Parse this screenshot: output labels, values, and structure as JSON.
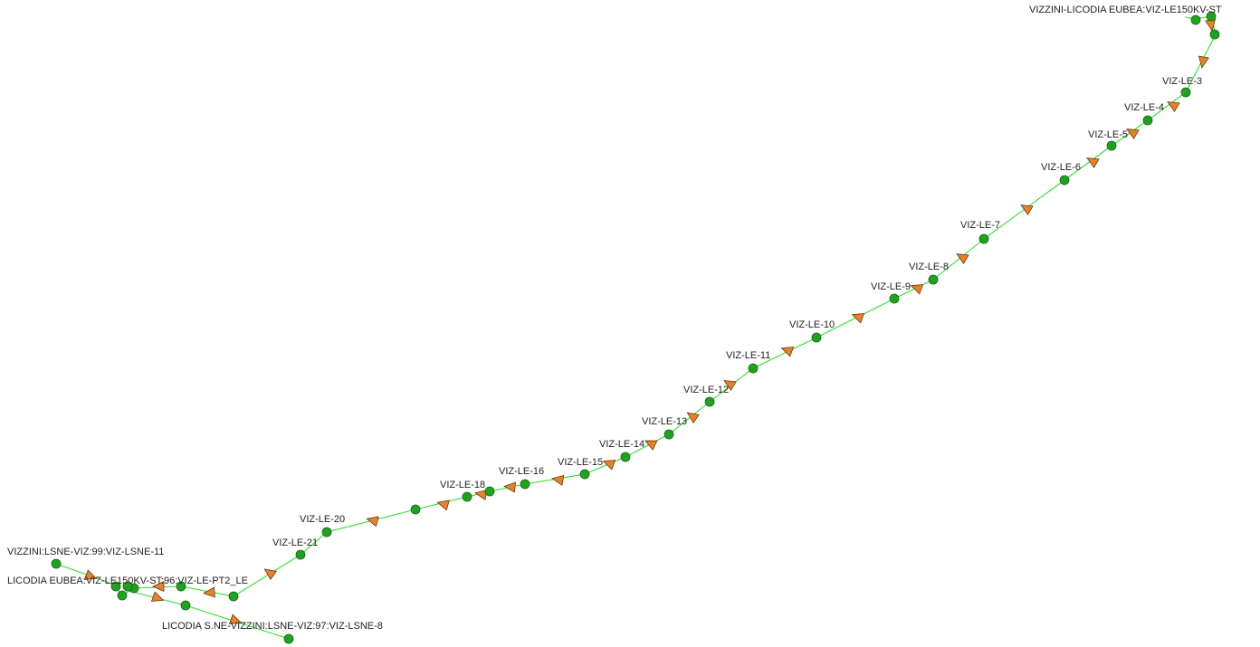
{
  "colors": {
    "background": "#ffffff",
    "edge": "#33dd33",
    "node": "#1fa31f",
    "arrow": "#e8822a",
    "label": "#222222"
  },
  "diagram": {
    "labels": [
      "VIZZINI-LICODIA EUBEA:VIZ-LE150KV-ST",
      "VIZ-LE-3",
      "VIZ-LE-4",
      "VIZ-LE-5",
      "VIZ-LE-6",
      "VIZ-LE-7",
      "VIZ-LE-8",
      "VIZ-LE-9",
      "VIZ-LE-10",
      "VIZ-LE-11",
      "VIZ-LE-12",
      "VIZ-LE-13",
      "VIZ-LE-14",
      "VIZ-LE-15",
      "VIZ-LE-16",
      "VIZ-LE-18",
      "VIZ-LE-20",
      "VIZ-LE-21",
      "VIZZINI:LSNE-VIZ:99:VIZ-LSNE-11",
      "LICODIA EUBEA:VIZ-LE150KV-ST:96:VIZ-LE-PT2_LE",
      "LICODIA S.NE-VIZZINI:LSNE-VIZ:97:VIZ-LSNE-8"
    ]
  }
}
